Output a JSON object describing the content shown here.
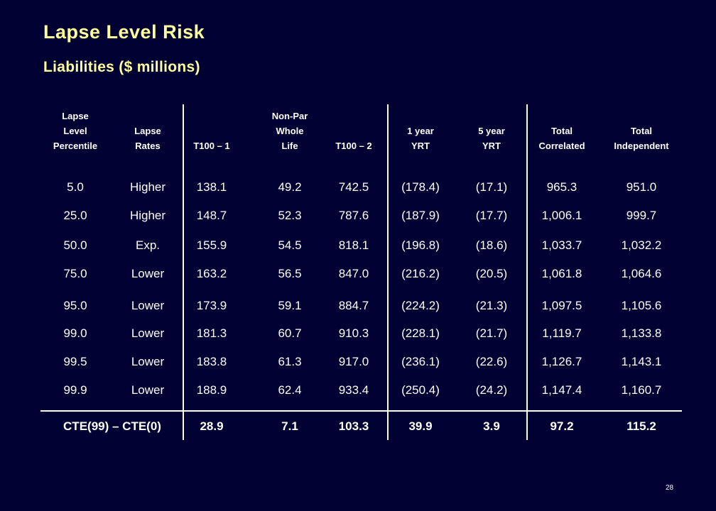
{
  "slide": {
    "title": "Lapse Level Risk",
    "subtitle": "Liabilities ($ millions)",
    "slide_number": "28"
  },
  "table": {
    "columns": [
      {
        "lines": [
          "Lapse",
          "Level",
          "Percentile"
        ]
      },
      {
        "lines": [
          "Lapse",
          "Rates"
        ]
      },
      {
        "lines": [
          "T100 – 1"
        ]
      },
      {
        "lines": [
          "Non-Par",
          "Whole",
          "Life"
        ]
      },
      {
        "lines": [
          "T100 – 2"
        ]
      },
      {
        "lines": [
          "1 year",
          "YRT"
        ]
      },
      {
        "lines": [
          "5 year",
          "YRT"
        ]
      },
      {
        "lines": [
          "Total",
          "Correlated"
        ]
      },
      {
        "lines": [
          "Total",
          "Independent"
        ]
      }
    ],
    "rows": [
      [
        "5.0",
        "Higher",
        "138.1",
        "49.2",
        "742.5",
        "(178.4)",
        "(17.1)",
        "965.3",
        "951.0"
      ],
      [
        "25.0",
        "Higher",
        "148.7",
        "52.3",
        "787.6",
        "(187.9)",
        "(17.7)",
        "1,006.1",
        "999.7"
      ],
      [
        "50.0",
        "Exp.",
        "155.9",
        "54.5",
        "818.1",
        "(196.8)",
        "(18.6)",
        "1,033.7",
        "1,032.2"
      ],
      [
        "75.0",
        "Lower",
        "163.2",
        "56.5",
        "847.0",
        "(216.2)",
        "(20.5)",
        "1,061.8",
        "1,064.6"
      ],
      [
        "95.0",
        "Lower",
        "173.9",
        "59.1",
        "884.7",
        "(224.2)",
        "(21.3)",
        "1,097.5",
        "1,105.6"
      ],
      [
        "99.0",
        "Lower",
        "181.3",
        "60.7",
        "910.3",
        "(228.1)",
        "(21.7)",
        "1,119.7",
        "1,133.8"
      ],
      [
        "99.5",
        "Lower",
        "183.8",
        "61.3",
        "917.0",
        "(236.1)",
        "(22.6)",
        "1,126.7",
        "1,143.1"
      ],
      [
        "99.9",
        "Lower",
        "188.9",
        "62.4",
        "933.4",
        "(250.4)",
        "(24.2)",
        "1,147.4",
        "1,160.7"
      ]
    ],
    "cte_row": {
      "label": "CTE(99) – CTE(0)",
      "values": [
        "28.9",
        "7.1",
        "103.3",
        "39.9",
        "3.9",
        "97.2",
        "115.2"
      ]
    }
  }
}
